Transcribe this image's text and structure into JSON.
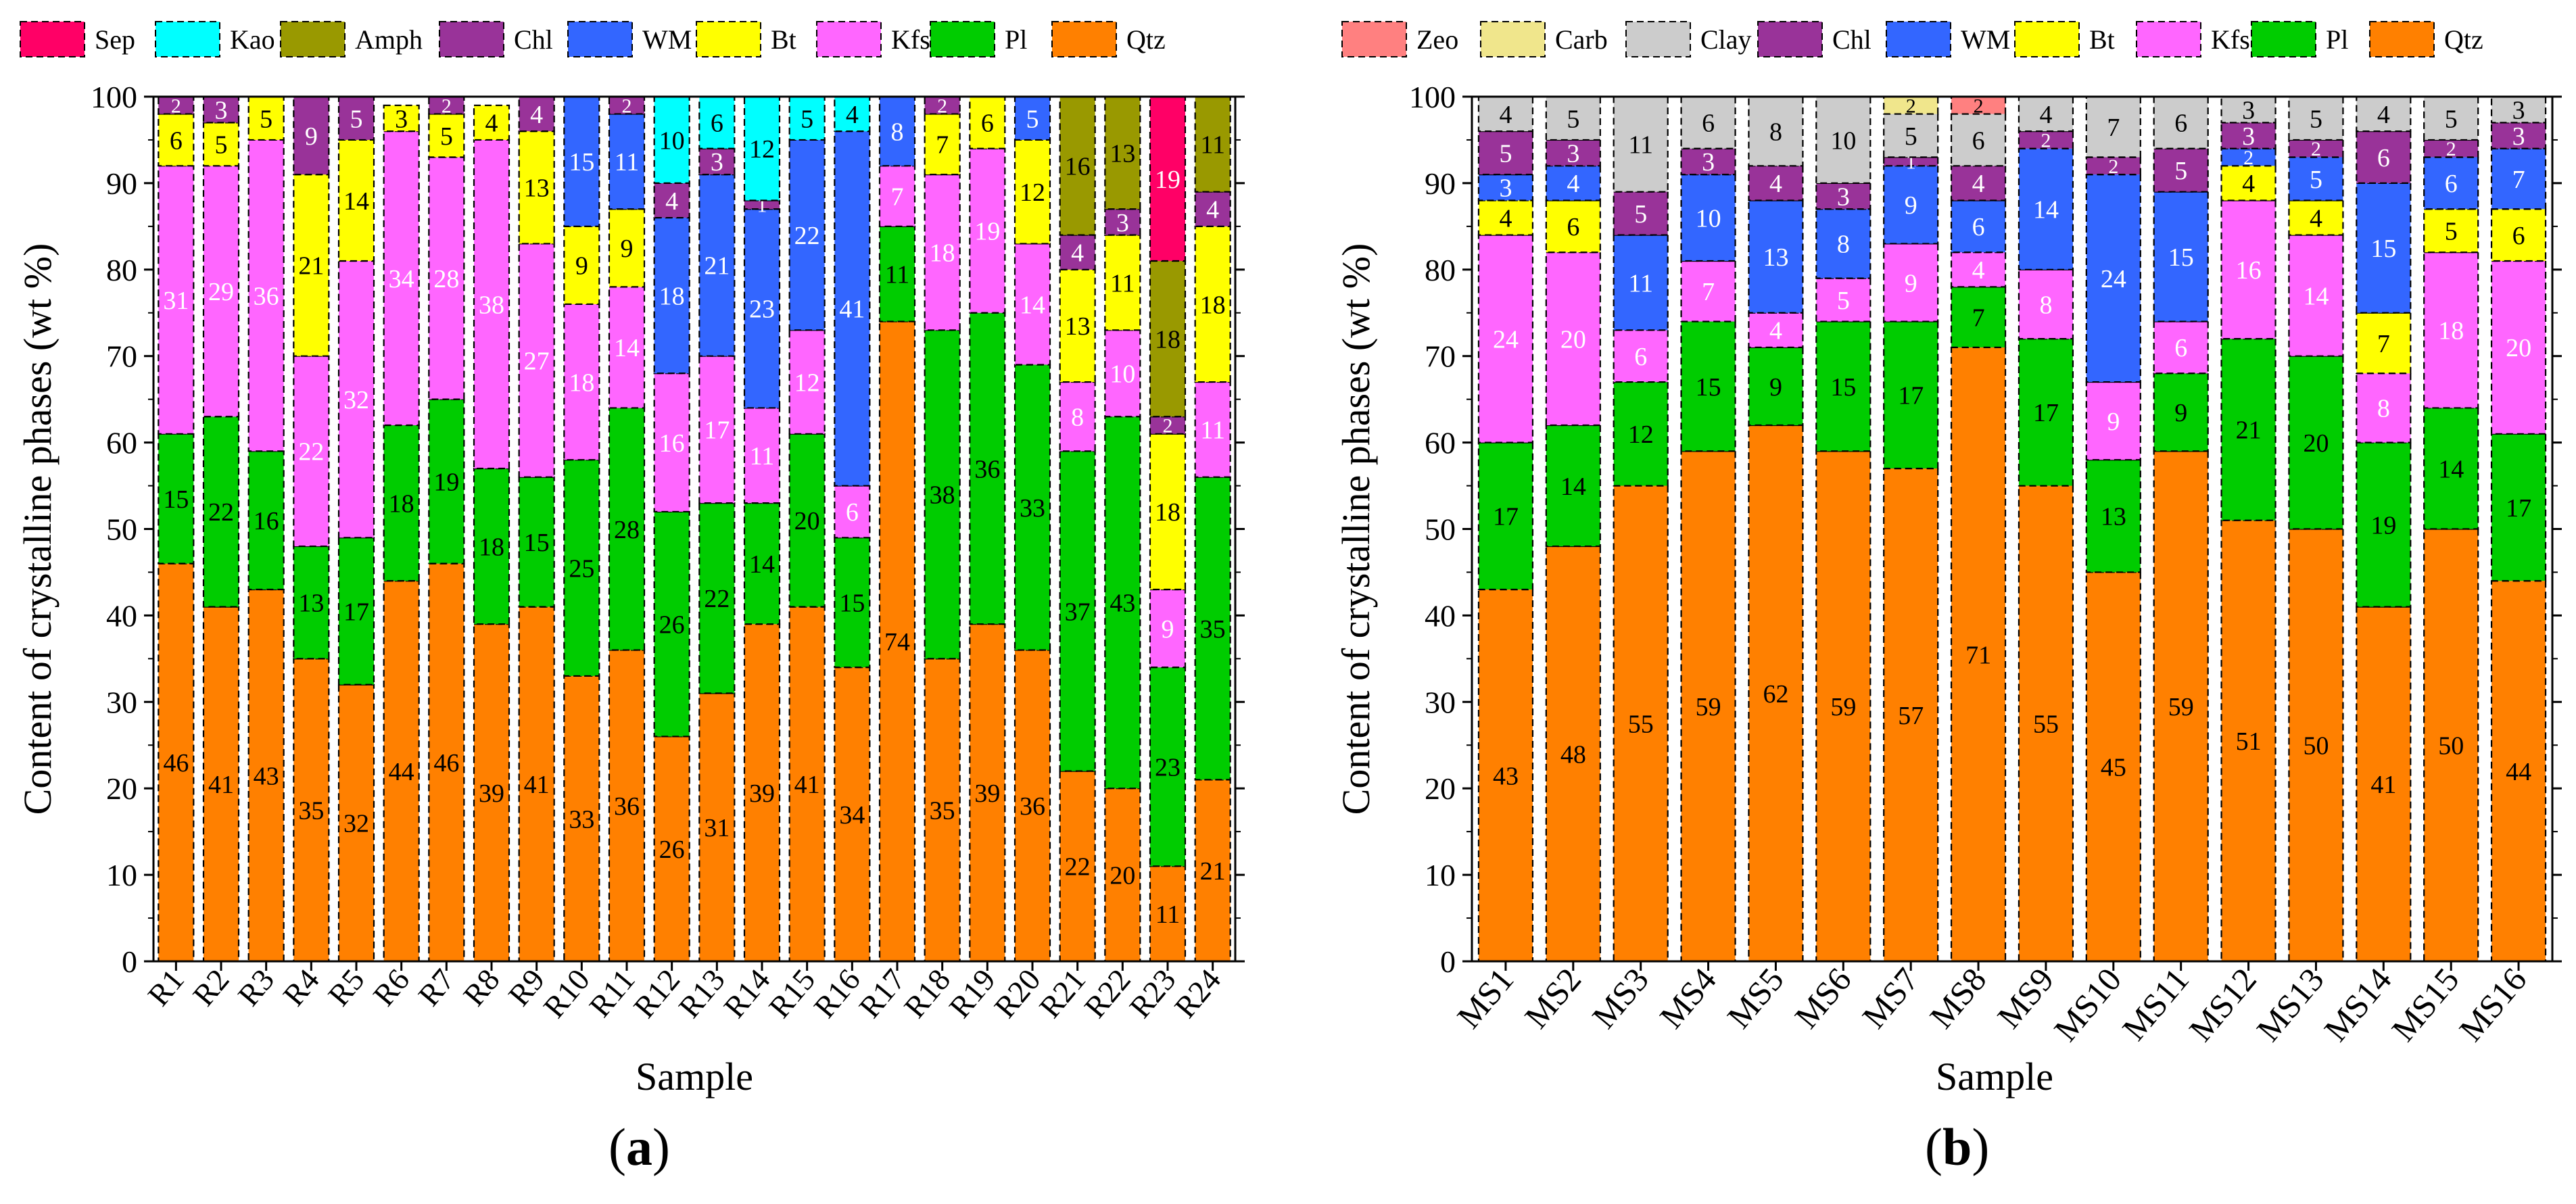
{
  "panels": [
    {
      "id": "a",
      "panel_label": "a",
      "chart_data": {
        "type": "bar",
        "stacked": true,
        "xlabel": "Sample",
        "ylabel": "Content of crystalline phases (wt %)",
        "ylim": [
          0,
          100
        ],
        "yticks": [
          0,
          10,
          20,
          30,
          40,
          50,
          60,
          70,
          80,
          90,
          100
        ],
        "legend": [
          {
            "name": "Sep",
            "color": "#FF0066"
          },
          {
            "name": "Kao",
            "color": "#00FFFF"
          },
          {
            "name": "Amph",
            "color": "#999900"
          },
          {
            "name": "Chl",
            "color": "#993399"
          },
          {
            "name": "WM",
            "color": "#3366FF"
          },
          {
            "name": "Bt",
            "color": "#FFFF00"
          },
          {
            "name": "Kfs",
            "color": "#FF66FF"
          },
          {
            "name": "Pl",
            "color": "#00CC00"
          },
          {
            "name": "Qtz",
            "color": "#FF8000"
          }
        ],
        "categories": [
          "R1",
          "R2",
          "R3",
          "R4",
          "R5",
          "R6",
          "R7",
          "R8",
          "R9",
          "R10",
          "R11",
          "R12",
          "R13",
          "R14",
          "R15",
          "R16",
          "R17",
          "R18",
          "R19",
          "R20",
          "R21",
          "R22",
          "R23",
          "R24"
        ],
        "series": [
          {
            "name": "Qtz",
            "values": [
              46,
              41,
              43,
              35,
              32,
              44,
              46,
              39,
              41,
              33,
              36,
              26,
              31,
              39,
              41,
              34,
              74,
              35,
              39,
              36,
              22,
              20,
              11,
              21
            ]
          },
          {
            "name": "Pl",
            "values": [
              15,
              22,
              16,
              13,
              17,
              18,
              19,
              18,
              15,
              25,
              28,
              26,
              22,
              14,
              20,
              15,
              11,
              38,
              36,
              33,
              37,
              43,
              23,
              35
            ]
          },
          {
            "name": "Kfs",
            "values": [
              31,
              29,
              36,
              22,
              32,
              34,
              28,
              38,
              27,
              18,
              14,
              16,
              17,
              11,
              12,
              6,
              7,
              18,
              19,
              14,
              8,
              10,
              9,
              11
            ]
          },
          {
            "name": "Bt",
            "values": [
              6,
              5,
              5,
              21,
              14,
              3,
              5,
              4,
              13,
              9,
              9,
              0,
              0,
              0,
              0,
              0,
              0,
              7,
              6,
              12,
              13,
              11,
              18,
              18
            ]
          },
          {
            "name": "WM",
            "values": [
              0,
              0,
              0,
              0,
              0,
              0,
              0,
              0,
              0,
              15,
              11,
              18,
              21,
              23,
              22,
              41,
              8,
              0,
              0,
              5,
              0,
              0,
              0,
              0
            ]
          },
          {
            "name": "Chl",
            "values": [
              2,
              3,
              0,
              9,
              5,
              0,
              2,
              0,
              4,
              0,
              2,
              4,
              3,
              1,
              0,
              0,
              0,
              2,
              0,
              0,
              4,
              3,
              2,
              4
            ]
          },
          {
            "name": "Amph",
            "values": [
              0,
              0,
              0,
              0,
              0,
              0,
              0,
              0,
              0,
              0,
              0,
              0,
              0,
              0,
              0,
              0,
              0,
              0,
              0,
              0,
              16,
              13,
              18,
              11
            ]
          },
          {
            "name": "Kao",
            "values": [
              0,
              0,
              0,
              0,
              0,
              0,
              0,
              0,
              0,
              0,
              0,
              10,
              6,
              12,
              5,
              4,
              0,
              0,
              0,
              0,
              0,
              0,
              0,
              0
            ]
          },
          {
            "name": "Sep",
            "values": [
              0,
              0,
              0,
              0,
              0,
              0,
              0,
              0,
              0,
              0,
              0,
              0,
              0,
              0,
              0,
              0,
              0,
              0,
              0,
              0,
              0,
              0,
              19,
              0
            ]
          }
        ]
      }
    },
    {
      "id": "b",
      "panel_label": "b",
      "chart_data": {
        "type": "bar",
        "stacked": true,
        "xlabel": "Sample",
        "ylabel": "Content of crystalline phases (wt %)",
        "ylim": [
          0,
          100
        ],
        "yticks": [
          0,
          10,
          20,
          30,
          40,
          50,
          60,
          70,
          80,
          90,
          100
        ],
        "legend": [
          {
            "name": "Zeo",
            "color": "#FF8080"
          },
          {
            "name": "Carb",
            "color": "#F0E68C"
          },
          {
            "name": "Clay",
            "color": "#CCCCCC"
          },
          {
            "name": "Chl",
            "color": "#993399"
          },
          {
            "name": "WM",
            "color": "#3366FF"
          },
          {
            "name": "Bt",
            "color": "#FFFF00"
          },
          {
            "name": "Kfs",
            "color": "#FF66FF"
          },
          {
            "name": "Pl",
            "color": "#00CC00"
          },
          {
            "name": "Qtz",
            "color": "#FF8000"
          }
        ],
        "categories": [
          "MS1",
          "MS2",
          "MS3",
          "MS4",
          "MS5",
          "MS6",
          "MS7",
          "MS8",
          "MS9",
          "MS10",
          "MS11",
          "MS12",
          "MS13",
          "MS14",
          "MS15",
          "MS16"
        ],
        "series": [
          {
            "name": "Qtz",
            "values": [
              43,
              48,
              55,
              59,
              62,
              59,
              57,
              71,
              55,
              45,
              59,
              51,
              50,
              41,
              50,
              44
            ]
          },
          {
            "name": "Pl",
            "values": [
              17,
              14,
              12,
              15,
              9,
              15,
              17,
              7,
              17,
              13,
              9,
              21,
              20,
              19,
              14,
              17
            ]
          },
          {
            "name": "Kfs",
            "values": [
              24,
              20,
              6,
              7,
              4,
              5,
              9,
              4,
              8,
              9,
              6,
              16,
              14,
              8,
              18,
              20
            ]
          },
          {
            "name": "Bt",
            "values": [
              4,
              6,
              0,
              0,
              0,
              0,
              0,
              0,
              0,
              0,
              0,
              4,
              4,
              7,
              5,
              6
            ]
          },
          {
            "name": "WM",
            "values": [
              3,
              4,
              11,
              10,
              13,
              8,
              9,
              6,
              14,
              24,
              15,
              2,
              5,
              15,
              6,
              7
            ]
          },
          {
            "name": "Chl",
            "values": [
              5,
              3,
              5,
              3,
              4,
              3,
              1,
              4,
              2,
              2,
              5,
              3,
              2,
              6,
              2,
              3
            ]
          },
          {
            "name": "Clay",
            "values": [
              4,
              5,
              11,
              6,
              8,
              10,
              5,
              6,
              4,
              7,
              6,
              3,
              5,
              4,
              5,
              3
            ]
          },
          {
            "name": "Carb",
            "values": [
              0,
              0,
              0,
              0,
              0,
              0,
              2,
              0,
              0,
              0,
              0,
              0,
              0,
              0,
              0,
              0
            ]
          },
          {
            "name": "Zeo",
            "values": [
              0,
              0,
              0,
              0,
              0,
              0,
              0,
              2,
              0,
              0,
              0,
              0,
              0,
              0,
              0,
              0
            ]
          }
        ]
      }
    }
  ]
}
